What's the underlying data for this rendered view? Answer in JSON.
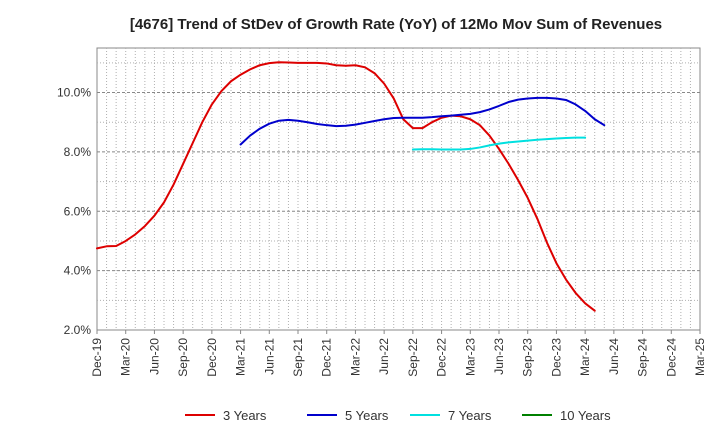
{
  "chart_data": {
    "type": "line",
    "title": "[4676]  Trend of StDev of Growth Rate (YoY) of 12Mo Mov Sum of Revenues",
    "xlabel": "",
    "ylabel": "",
    "ylim": [
      2.0,
      11.5
    ],
    "y_ticks": [
      2.0,
      4.0,
      6.0,
      8.0,
      10.0
    ],
    "y_tick_labels": [
      "2.0%",
      "4.0%",
      "6.0%",
      "8.0%",
      "10.0%"
    ],
    "x_tick_labels": [
      "Dec-19",
      "Mar-20",
      "Jun-20",
      "Sep-20",
      "Dec-20",
      "Mar-21",
      "Jun-21",
      "Sep-21",
      "Dec-21",
      "Mar-22",
      "Jun-22",
      "Sep-22",
      "Dec-22",
      "Mar-23",
      "Jun-23",
      "Sep-23",
      "Dec-23",
      "Mar-24",
      "Jun-24",
      "Sep-24",
      "Dec-24",
      "Mar-25"
    ],
    "grid": true,
    "legend_position": "bottom",
    "series": [
      {
        "name": "3 Years",
        "color": "#dd0000",
        "start_index": 0,
        "values": [
          4.75,
          4.82,
          4.83,
          5.0,
          5.22,
          5.5,
          5.85,
          6.3,
          6.9,
          7.6,
          8.3,
          9.0,
          9.6,
          10.05,
          10.38,
          10.6,
          10.78,
          10.92,
          10.99,
          11.02,
          11.01,
          11.0,
          11.0,
          11.0,
          10.98,
          10.92,
          10.9,
          10.92,
          10.85,
          10.65,
          10.3,
          9.8,
          9.1,
          8.8,
          8.8,
          9.0,
          9.15,
          9.22,
          9.2,
          9.1,
          8.9,
          8.55,
          8.1,
          7.6,
          7.05,
          6.45,
          5.75,
          4.95,
          4.25,
          3.7,
          3.25,
          2.9,
          2.65
        ]
      },
      {
        "name": "5 Years",
        "color": "#0000cc",
        "start_index": 15,
        "values": [
          8.25,
          8.55,
          8.78,
          8.95,
          9.05,
          9.08,
          9.05,
          9.0,
          8.94,
          8.9,
          8.87,
          8.88,
          8.92,
          8.98,
          9.04,
          9.1,
          9.14,
          9.15,
          9.15,
          9.15,
          9.17,
          9.2,
          9.22,
          9.25,
          9.28,
          9.34,
          9.43,
          9.55,
          9.68,
          9.76,
          9.8,
          9.82,
          9.82,
          9.8,
          9.75,
          9.6,
          9.38,
          9.1,
          8.9
        ]
      },
      {
        "name": "7 Years",
        "color": "#00e0e0",
        "start_index": 33,
        "values": [
          8.08,
          8.09,
          8.09,
          8.08,
          8.08,
          8.08,
          8.1,
          8.15,
          8.22,
          8.28,
          8.32,
          8.35,
          8.38,
          8.41,
          8.43,
          8.45,
          8.47,
          8.48,
          8.48
        ]
      },
      {
        "name": "10 Years",
        "color": "#008000",
        "start_index": 0,
        "values": []
      }
    ]
  }
}
